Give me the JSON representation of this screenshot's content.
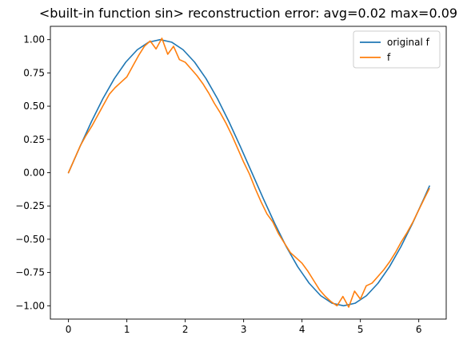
{
  "chart_data": {
    "type": "line",
    "title": "<built-in function sin> reconstruction error: avg=0.02 max=0.09",
    "xlabel": "",
    "ylabel": "",
    "xlim": [
      -0.31,
      6.47
    ],
    "ylim": [
      -1.1,
      1.1
    ],
    "xticks": [
      0,
      1,
      2,
      3,
      4,
      5,
      6
    ],
    "xtick_labels": [
      "0",
      "1",
      "2",
      "3",
      "4",
      "5",
      "6"
    ],
    "yticks": [
      -1.0,
      -0.75,
      -0.5,
      -0.25,
      0.0,
      0.25,
      0.5,
      0.75,
      1.0
    ],
    "ytick_labels": [
      "−1.00",
      "−0.75",
      "−0.50",
      "−0.25",
      "0.00",
      "0.25",
      "0.50",
      "0.75",
      "1.00"
    ],
    "grid": false,
    "legend_position": "top-right",
    "series": [
      {
        "name": "original f",
        "color": "#1f77b4",
        "x": [
          0.0,
          0.1963,
          0.3927,
          0.589,
          0.7854,
          0.9817,
          1.1781,
          1.3744,
          1.5708,
          1.7671,
          1.9635,
          2.1598,
          2.3562,
          2.5525,
          2.7489,
          2.9452,
          3.1416,
          3.3379,
          3.5343,
          3.7306,
          3.927,
          4.1233,
          4.3197,
          4.516,
          4.7124,
          4.9087,
          5.1051,
          5.3014,
          5.4978,
          5.6941,
          5.8905,
          6.0868,
          6.1832
        ],
        "y": [
          0.0,
          0.195,
          0.383,
          0.556,
          0.707,
          0.831,
          0.924,
          0.981,
          1.0,
          0.981,
          0.924,
          0.831,
          0.707,
          0.556,
          0.383,
          0.195,
          0.0,
          -0.195,
          -0.383,
          -0.556,
          -0.707,
          -0.831,
          -0.924,
          -0.981,
          -1.0,
          -0.981,
          -0.924,
          -0.831,
          -0.707,
          -0.556,
          -0.383,
          -0.195,
          -0.1
        ]
      },
      {
        "name": "f",
        "color": "#ff7f0e",
        "x": [
          0.0,
          0.1,
          0.2,
          0.3,
          0.4,
          0.5,
          0.6,
          0.7,
          0.8,
          0.9,
          1.0,
          1.1,
          1.2,
          1.3,
          1.4,
          1.5,
          1.6,
          1.7,
          1.8,
          1.9,
          2.0,
          2.1,
          2.2,
          2.3,
          2.4,
          2.5,
          2.6,
          2.7,
          2.8,
          2.9,
          3.0,
          3.1,
          3.2,
          3.3,
          3.4,
          3.5,
          3.6,
          3.7,
          3.8,
          3.9,
          4.0,
          4.1,
          4.2,
          4.3,
          4.4,
          4.5,
          4.6,
          4.7,
          4.8,
          4.9,
          5.0,
          5.1,
          5.2,
          5.3,
          5.4,
          5.5,
          5.6,
          5.7,
          5.8,
          5.9,
          6.0,
          6.1,
          6.18
        ],
        "y": [
          0.0,
          0.1,
          0.2,
          0.28,
          0.35,
          0.43,
          0.51,
          0.59,
          0.64,
          0.68,
          0.72,
          0.8,
          0.88,
          0.95,
          0.99,
          0.93,
          1.01,
          0.89,
          0.95,
          0.85,
          0.83,
          0.78,
          0.73,
          0.67,
          0.6,
          0.52,
          0.45,
          0.37,
          0.28,
          0.18,
          0.08,
          -0.01,
          -0.12,
          -0.22,
          -0.31,
          -0.37,
          -0.46,
          -0.53,
          -0.6,
          -0.64,
          -0.68,
          -0.74,
          -0.81,
          -0.88,
          -0.93,
          -0.97,
          -1.0,
          -0.93,
          -1.01,
          -0.89,
          -0.95,
          -0.85,
          -0.83,
          -0.78,
          -0.73,
          -0.67,
          -0.6,
          -0.52,
          -0.45,
          -0.37,
          -0.28,
          -0.19,
          -0.12
        ]
      }
    ]
  }
}
